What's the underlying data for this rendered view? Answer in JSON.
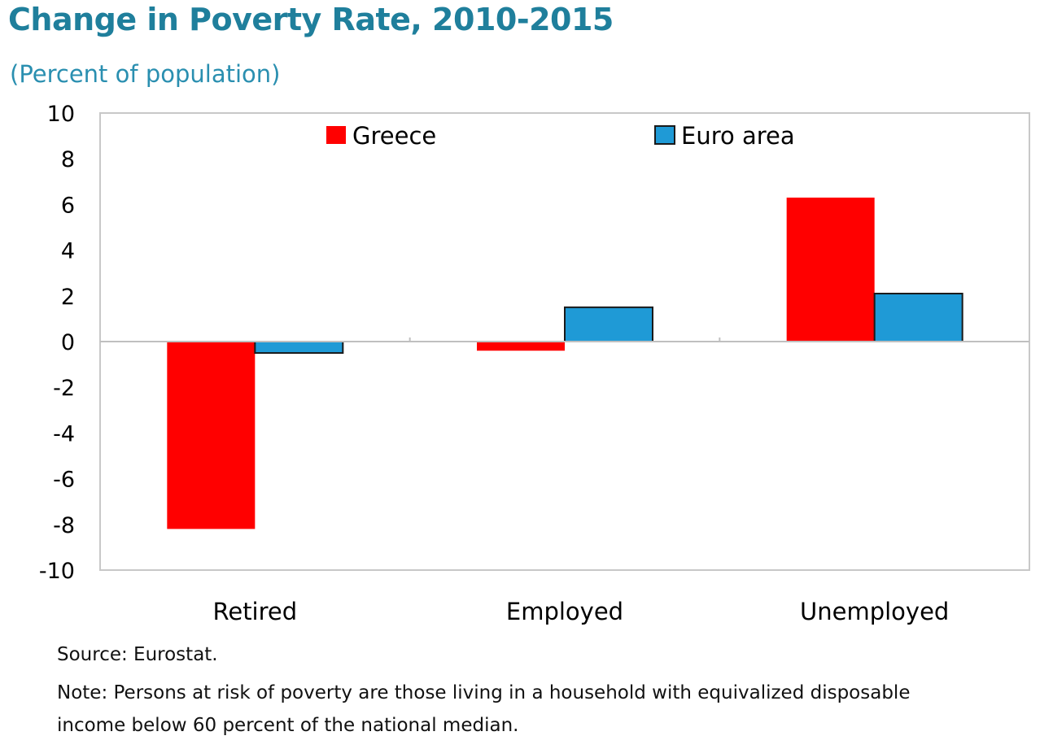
{
  "header": {
    "title": "Change in Poverty Rate, 2010-2015",
    "subtitle": "(Percent of population)"
  },
  "footer": {
    "source": "Source: Eurostat.",
    "note": "Note: Persons at risk of poverty are those living in a household with equivalized disposable income below 60 percent of the national median."
  },
  "chart_data": {
    "type": "bar",
    "title": "Change in Poverty Rate, 2010-2015",
    "subtitle": "(Percent of population)",
    "categories": [
      "Retired",
      "Employed",
      "Unemployed"
    ],
    "series": [
      {
        "name": "Greece",
        "values": [
          -8.2,
          -0.4,
          6.3
        ],
        "color": "#ff0000"
      },
      {
        "name": "Euro area",
        "values": [
          -0.5,
          1.5,
          2.1
        ],
        "color": "#1f9ad6"
      }
    ],
    "ylim": [
      -10,
      10
    ],
    "yticks": [
      10,
      8,
      6,
      4,
      2,
      0,
      -2,
      -4,
      -6,
      -8,
      -10
    ],
    "xlabel": "",
    "ylabel": "",
    "grid": false,
    "legend": "top"
  }
}
